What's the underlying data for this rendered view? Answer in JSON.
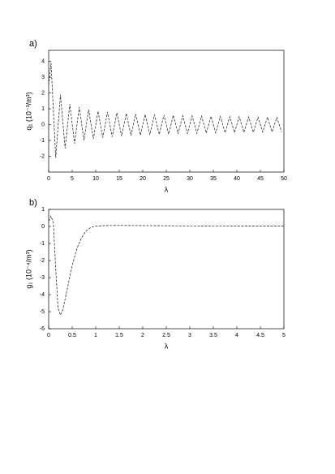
{
  "chart_data": [
    {
      "type": "line",
      "label": "a)",
      "xlabel": "λ",
      "ylabel": "q₁ (10⁻³/m³)",
      "xlim": [
        0,
        50
      ],
      "xticks": [
        0,
        5,
        10,
        15,
        20,
        25,
        30,
        35,
        40,
        45,
        50
      ],
      "ylim": [
        -3,
        4.7
      ],
      "yticks": [
        -2,
        -1,
        0,
        1,
        2,
        3,
        4
      ],
      "x": [
        0,
        0.5,
        1.5,
        2.5,
        3.5,
        4.5,
        5.5,
        6.5,
        7.5,
        8.5,
        9.5,
        10.5,
        11.5,
        12.5,
        13.5,
        14.5,
        15.5,
        16.5,
        17.5,
        18.5,
        19.5,
        20.5,
        21.5,
        22.5,
        23.5,
        24.5,
        25.5,
        26.5,
        27.5,
        28.5,
        29.5,
        30.5,
        31.5,
        32.5,
        33.5,
        34.5,
        35.5,
        36.5,
        37.5,
        38.5,
        39.5,
        40.5,
        41.5,
        42.5,
        43.5,
        44.5,
        45.5,
        46.5,
        47.5,
        48.5,
        49.5
      ],
      "values": [
        2.5,
        3.9,
        -2.1,
        1.9,
        -1.5,
        1.3,
        -1.2,
        1.1,
        -1.0,
        0.95,
        -0.9,
        0.85,
        -0.82,
        0.8,
        -0.77,
        0.75,
        -0.73,
        0.71,
        -0.69,
        0.67,
        -0.66,
        0.65,
        -0.64,
        0.63,
        -0.62,
        0.61,
        -0.6,
        0.59,
        -0.58,
        0.57,
        -0.56,
        0.55,
        -0.55,
        0.54,
        -0.53,
        0.53,
        -0.52,
        0.52,
        -0.51,
        0.51,
        -0.5,
        0.5,
        -0.49,
        0.49,
        -0.48,
        0.48,
        -0.47,
        0.47,
        -0.46,
        0.46,
        -0.45
      ],
      "color": "#333333"
    },
    {
      "type": "line",
      "label": "b)",
      "xlabel": "λ",
      "ylabel": "g₁ (10⁻⁴/m³)",
      "xlim": [
        0,
        5
      ],
      "xticks": [
        0,
        0.5,
        1,
        1.5,
        2,
        2.5,
        3,
        3.5,
        4,
        4.5,
        5
      ],
      "ylim": [
        -6,
        1
      ],
      "yticks": [
        -6,
        -5,
        -4,
        -3,
        -2,
        -1,
        0,
        1
      ],
      "x": [
        0,
        0.05,
        0.1,
        0.15,
        0.2,
        0.25,
        0.3,
        0.4,
        0.5,
        0.6,
        0.7,
        0.8,
        0.9,
        1,
        1.2,
        1.5,
        2,
        3,
        4,
        5
      ],
      "values": [
        0.3,
        0.6,
        0.2,
        -2.5,
        -4.8,
        -5.2,
        -4.9,
        -3.6,
        -2.3,
        -1.3,
        -0.65,
        -0.25,
        -0.05,
        0.02,
        0.05,
        0.06,
        0.05,
        0.03,
        0.02,
        0.02
      ],
      "color": "#333333"
    }
  ]
}
